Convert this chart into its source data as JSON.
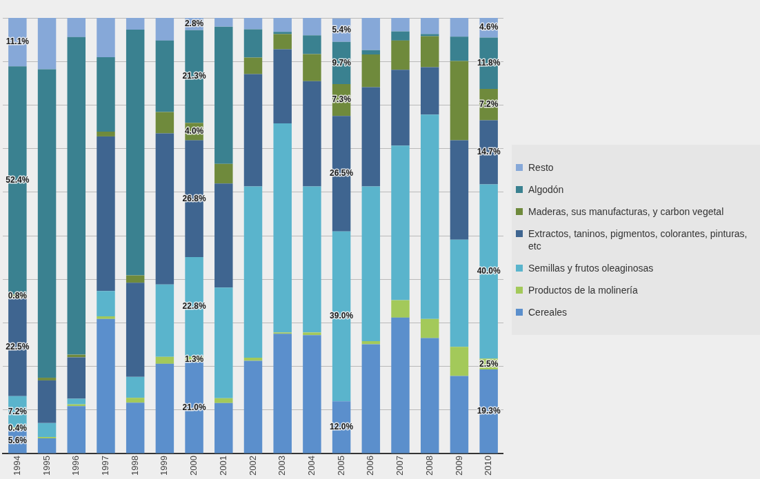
{
  "chart_data": {
    "type": "bar",
    "stacked": true,
    "legend": "right",
    "grid": "y",
    "tick_labels": "x",
    "categories": [
      "1994",
      "1995",
      "1996",
      "1997",
      "1998",
      "1999",
      "2000",
      "2001",
      "2002",
      "2003",
      "2004",
      "2005",
      "2006",
      "2007",
      "2008",
      "2009",
      "2010"
    ],
    "ylim": [
      0,
      100
    ],
    "yticks": [
      {
        "value": 0,
        "label": null
      },
      {
        "value": 10,
        "label": null
      },
      {
        "value": 20,
        "label": null
      },
      {
        "value": 30,
        "label": null
      },
      {
        "value": 40,
        "label": null
      },
      {
        "value": 50,
        "label": null
      },
      {
        "value": 60,
        "label": null
      },
      {
        "value": 70,
        "label": null
      },
      {
        "value": 80,
        "label": null
      },
      {
        "value": 90,
        "label": null
      },
      {
        "value": 100,
        "label": null
      }
    ],
    "series": [
      {
        "name": "Cereales",
        "color": "#5b8fcc",
        "values": [
          5.6,
          3.5,
          10.9,
          30.9,
          11.7,
          20.6,
          21.0,
          11.6,
          21.3,
          27.5,
          27.2,
          12.0,
          25.1,
          31.2,
          26.5,
          17.8,
          19.3
        ],
        "value_labels": [
          "5.6%",
          null,
          null,
          null,
          null,
          null,
          "21.0%",
          null,
          null,
          null,
          null,
          "12.0%",
          null,
          null,
          null,
          null,
          "19.3%"
        ]
      },
      {
        "name": "Productos de la molinería",
        "color": "#a3c95a",
        "values": [
          0.4,
          0.3,
          0.4,
          0.6,
          1.1,
          1.6,
          1.3,
          1.1,
          0.7,
          0.3,
          0.6,
          null,
          0.7,
          4.0,
          4.4,
          6.7,
          2.5
        ],
        "value_labels": [
          "0.4%",
          null,
          null,
          null,
          null,
          null,
          "1.3%",
          null,
          null,
          null,
          null,
          null,
          null,
          null,
          null,
          null,
          "2.5%"
        ]
      },
      {
        "name": "Semillas y frutos oleaginosas",
        "color": "#5ab4cc",
        "values": [
          7.2,
          3.2,
          1.3,
          5.8,
          4.8,
          16.6,
          22.8,
          25.4,
          39.3,
          48.0,
          33.5,
          39.0,
          35.5,
          35.5,
          46.9,
          24.6,
          40.0
        ],
        "value_labels": [
          "7.2%",
          null,
          null,
          null,
          null,
          null,
          "22.8%",
          null,
          null,
          null,
          null,
          "39.0%",
          null,
          null,
          null,
          null,
          "40.0%"
        ]
      },
      {
        "name": "Extractos, taninos, pigmentos, colorantes, pinturas, etc",
        "color": "#3f6590",
        "values": [
          22.5,
          9.8,
          9.5,
          35.5,
          21.6,
          34.7,
          26.8,
          23.9,
          25.8,
          17.0,
          24.2,
          26.5,
          22.8,
          17.4,
          10.9,
          22.8,
          14.7
        ],
        "value_labels": [
          "22.5%",
          null,
          null,
          null,
          null,
          null,
          "26.8%",
          null,
          null,
          null,
          null,
          "26.5%",
          null,
          null,
          null,
          null,
          "14.7%"
        ]
      },
      {
        "name": "Maderas, sus manufacturas, y carbon vegetal",
        "color": "#6f8a3c",
        "values": [
          0.8,
          0.6,
          0.6,
          1.1,
          1.7,
          4.9,
          4.0,
          4.5,
          3.8,
          3.5,
          6.2,
          7.3,
          7.5,
          6.7,
          7.1,
          18.2,
          7.2
        ],
        "value_labels": [
          "0.8%",
          null,
          null,
          null,
          null,
          null,
          "4.0%",
          null,
          null,
          null,
          null,
          "7.3%",
          null,
          null,
          null,
          null,
          "7.2%"
        ]
      },
      {
        "name": "Algodón",
        "color": "#3a8190",
        "values": [
          52.4,
          70.8,
          72.9,
          17.1,
          56.4,
          16.4,
          21.3,
          31.5,
          6.5,
          0.5,
          4.3,
          9.7,
          1.0,
          2.1,
          0.5,
          5.6,
          11.8
        ],
        "value_labels": [
          "52.4%",
          null,
          null,
          null,
          null,
          null,
          "21.3%",
          null,
          null,
          null,
          null,
          "9.7%",
          null,
          null,
          null,
          null,
          "11.8%"
        ]
      },
      {
        "name": "Resto",
        "color": "#86a8d8",
        "values": [
          11.1,
          11.8,
          4.4,
          9.0,
          2.7,
          5.2,
          2.8,
          2.0,
          2.6,
          3.2,
          4.0,
          5.4,
          7.4,
          3.1,
          3.7,
          4.3,
          4.6
        ],
        "value_labels": [
          "11.1%",
          null,
          null,
          null,
          null,
          null,
          "2.8%",
          null,
          null,
          null,
          null,
          "5.4%",
          null,
          null,
          null,
          null,
          "4.6%"
        ]
      }
    ]
  }
}
